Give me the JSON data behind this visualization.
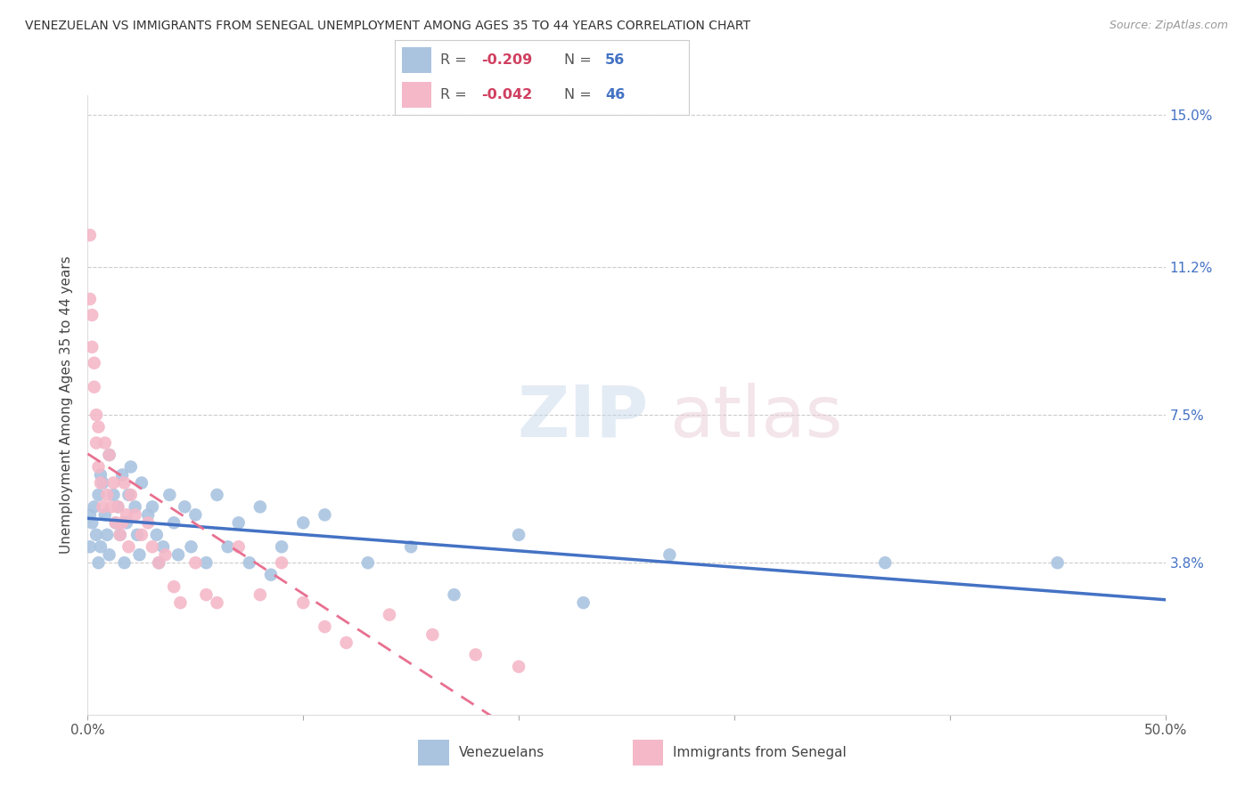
{
  "title": "VENEZUELAN VS IMMIGRANTS FROM SENEGAL UNEMPLOYMENT AMONG AGES 35 TO 44 YEARS CORRELATION CHART",
  "source": "Source: ZipAtlas.com",
  "ylabel": "Unemployment Among Ages 35 to 44 years",
  "xlim": [
    0.0,
    0.5
  ],
  "ylim": [
    0.0,
    0.155
  ],
  "ytick_labels_right": [
    "15.0%",
    "11.2%",
    "7.5%",
    "3.8%"
  ],
  "ytick_values_right": [
    0.15,
    0.112,
    0.075,
    0.038
  ],
  "background_color": "#ffffff",
  "grid_color": "#cccccc",
  "venezuelan_color": "#aac4e0",
  "senegal_color": "#f4b8c8",
  "venezuelan_line_color": "#4472c4",
  "senegal_line_color": "#e87090",
  "venezuelan_x": [
    0.001,
    0.001,
    0.002,
    0.003,
    0.004,
    0.005,
    0.005,
    0.006,
    0.006,
    0.007,
    0.008,
    0.009,
    0.01,
    0.01,
    0.012,
    0.013,
    0.014,
    0.015,
    0.016,
    0.017,
    0.018,
    0.019,
    0.02,
    0.022,
    0.023,
    0.024,
    0.025,
    0.028,
    0.03,
    0.032,
    0.033,
    0.035,
    0.038,
    0.04,
    0.042,
    0.045,
    0.048,
    0.05,
    0.055,
    0.06,
    0.065,
    0.07,
    0.075,
    0.08,
    0.085,
    0.09,
    0.1,
    0.11,
    0.13,
    0.15,
    0.17,
    0.2,
    0.23,
    0.27,
    0.37,
    0.45
  ],
  "venezuelan_y": [
    0.05,
    0.042,
    0.048,
    0.052,
    0.045,
    0.055,
    0.038,
    0.06,
    0.042,
    0.058,
    0.05,
    0.045,
    0.065,
    0.04,
    0.055,
    0.048,
    0.052,
    0.045,
    0.06,
    0.038,
    0.048,
    0.055,
    0.062,
    0.052,
    0.045,
    0.04,
    0.058,
    0.05,
    0.052,
    0.045,
    0.038,
    0.042,
    0.055,
    0.048,
    0.04,
    0.052,
    0.042,
    0.05,
    0.038,
    0.055,
    0.042,
    0.048,
    0.038,
    0.052,
    0.035,
    0.042,
    0.048,
    0.05,
    0.038,
    0.042,
    0.03,
    0.045,
    0.028,
    0.04,
    0.038,
    0.038
  ],
  "senegal_x": [
    0.001,
    0.001,
    0.002,
    0.002,
    0.003,
    0.003,
    0.004,
    0.004,
    0.005,
    0.005,
    0.006,
    0.007,
    0.008,
    0.009,
    0.01,
    0.011,
    0.012,
    0.013,
    0.014,
    0.015,
    0.016,
    0.017,
    0.018,
    0.019,
    0.02,
    0.022,
    0.025,
    0.028,
    0.03,
    0.033,
    0.036,
    0.04,
    0.043,
    0.05,
    0.055,
    0.06,
    0.07,
    0.08,
    0.09,
    0.1,
    0.11,
    0.12,
    0.14,
    0.16,
    0.18,
    0.2
  ],
  "senegal_y": [
    0.12,
    0.104,
    0.1,
    0.092,
    0.088,
    0.082,
    0.075,
    0.068,
    0.072,
    0.062,
    0.058,
    0.052,
    0.068,
    0.055,
    0.065,
    0.052,
    0.058,
    0.048,
    0.052,
    0.045,
    0.048,
    0.058,
    0.05,
    0.042,
    0.055,
    0.05,
    0.045,
    0.048,
    0.042,
    0.038,
    0.04,
    0.032,
    0.028,
    0.038,
    0.03,
    0.028,
    0.042,
    0.03,
    0.038,
    0.028,
    0.022,
    0.018,
    0.025,
    0.02,
    0.015,
    0.012
  ]
}
